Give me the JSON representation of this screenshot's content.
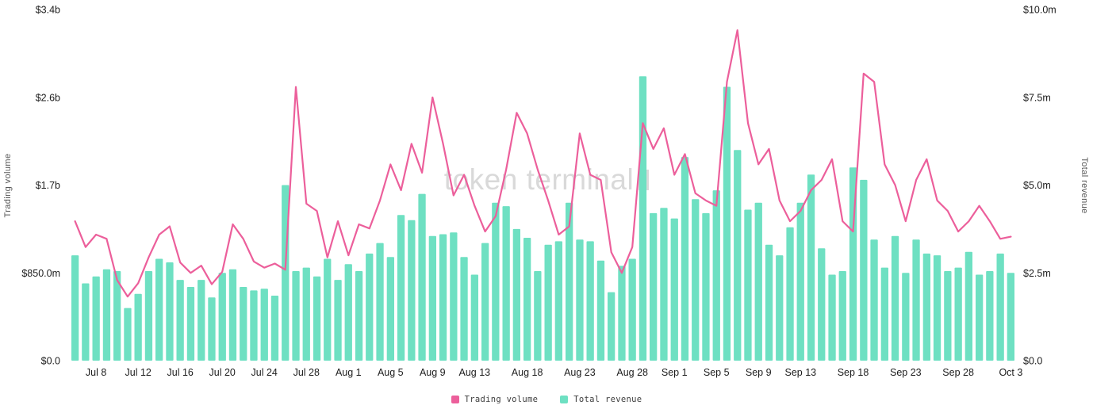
{
  "watermark": "token terminal",
  "left_axis_title": "Trading volume",
  "right_axis_title": "Total revenue",
  "legend": {
    "items": [
      {
        "label": "Trading volume",
        "color": "#ec5f9b"
      },
      {
        "label": "Total revenue",
        "color": "#6ee0c2"
      }
    ]
  },
  "chart_data": {
    "type": "mixed",
    "title": "",
    "grid": false,
    "legend_position": "bottom-center",
    "x": [
      "Jul 6",
      "Jul 7",
      "Jul 8",
      "Jul 9",
      "Jul 10",
      "Jul 11",
      "Jul 12",
      "Jul 13",
      "Jul 14",
      "Jul 15",
      "Jul 16",
      "Jul 17",
      "Jul 18",
      "Jul 19",
      "Jul 20",
      "Jul 21",
      "Jul 22",
      "Jul 23",
      "Jul 24",
      "Jul 25",
      "Jul 26",
      "Jul 27",
      "Jul 28",
      "Jul 29",
      "Jul 30",
      "Jul 31",
      "Aug 1",
      "Aug 2",
      "Aug 3",
      "Aug 4",
      "Aug 5",
      "Aug 6",
      "Aug 7",
      "Aug 8",
      "Aug 9",
      "Aug 10",
      "Aug 11",
      "Aug 12",
      "Aug 13",
      "Aug 14",
      "Aug 15",
      "Aug 16",
      "Aug 17",
      "Aug 18",
      "Aug 19",
      "Aug 20",
      "Aug 21",
      "Aug 22",
      "Aug 23",
      "Aug 24",
      "Aug 25",
      "Aug 26",
      "Aug 27",
      "Aug 28",
      "Aug 29",
      "Aug 30",
      "Aug 31",
      "Sep 1",
      "Sep 2",
      "Sep 3",
      "Sep 4",
      "Sep 5",
      "Sep 6",
      "Sep 7",
      "Sep 8",
      "Sep 9",
      "Sep 10",
      "Sep 11",
      "Sep 12",
      "Sep 13",
      "Sep 14",
      "Sep 15",
      "Sep 16",
      "Sep 17",
      "Sep 18",
      "Sep 19",
      "Sep 20",
      "Sep 21",
      "Sep 22",
      "Sep 23",
      "Sep 24",
      "Sep 25",
      "Sep 26",
      "Sep 27",
      "Sep 28",
      "Sep 29",
      "Sep 30",
      "Oct 1",
      "Oct 2",
      "Oct 3"
    ],
    "x_tick_labels": [
      "Jul 8",
      "Jul 12",
      "Jul 16",
      "Jul 20",
      "Jul 24",
      "Jul 28",
      "Aug 1",
      "Aug 5",
      "Aug 9",
      "Aug 13",
      "Aug 18",
      "Aug 23",
      "Aug 28",
      "Sep 1",
      "Sep 5",
      "Sep 9",
      "Sep 13",
      "Sep 18",
      "Sep 23",
      "Sep 28",
      "Oct 3"
    ],
    "series": [
      {
        "name": "Trading volume",
        "type": "line",
        "axis": "left",
        "color": "#ec5f9b",
        "unit": "USD billions",
        "values": [
          1.35,
          1.1,
          1.22,
          1.18,
          0.78,
          0.62,
          0.75,
          1.0,
          1.22,
          1.3,
          0.95,
          0.85,
          0.92,
          0.74,
          0.86,
          1.32,
          1.18,
          0.96,
          0.9,
          0.94,
          0.88,
          2.65,
          1.52,
          1.45,
          1.0,
          1.35,
          1.02,
          1.32,
          1.28,
          1.55,
          1.9,
          1.65,
          2.1,
          1.82,
          2.55,
          2.1,
          1.6,
          1.8,
          1.5,
          1.25,
          1.4,
          1.85,
          2.4,
          2.2,
          1.85,
          1.55,
          1.22,
          1.3,
          2.2,
          1.8,
          1.75,
          1.05,
          0.85,
          1.1,
          2.3,
          2.05,
          2.25,
          1.8,
          2.0,
          1.62,
          1.55,
          1.5,
          2.7,
          3.2,
          2.3,
          1.9,
          2.05,
          1.55,
          1.35,
          1.45,
          1.65,
          1.75,
          1.95,
          1.35,
          1.25,
          2.78,
          2.7,
          1.9,
          1.7,
          1.35,
          1.75,
          1.95,
          1.55,
          1.45,
          1.25,
          1.35,
          1.5,
          1.35,
          1.18,
          1.2
        ]
      },
      {
        "name": "Total revenue",
        "type": "bar",
        "axis": "right",
        "color": "#6ee0c2",
        "unit": "USD millions",
        "values": [
          3.0,
          2.2,
          2.4,
          2.6,
          2.55,
          1.5,
          1.9,
          2.55,
          2.9,
          2.8,
          2.3,
          2.1,
          2.3,
          1.8,
          2.5,
          2.6,
          2.1,
          2.0,
          2.05,
          1.85,
          5.0,
          2.55,
          2.65,
          2.4,
          2.9,
          2.3,
          2.75,
          2.55,
          3.05,
          3.35,
          2.95,
          4.15,
          4.0,
          4.75,
          3.55,
          3.6,
          3.65,
          2.95,
          2.45,
          3.35,
          4.5,
          4.4,
          3.75,
          3.5,
          2.55,
          3.3,
          3.4,
          4.5,
          3.45,
          3.4,
          2.85,
          1.95,
          2.7,
          2.9,
          8.1,
          4.2,
          4.35,
          4.05,
          5.8,
          4.6,
          4.2,
          4.85,
          7.8,
          6.0,
          4.3,
          4.5,
          3.3,
          3.0,
          3.8,
          4.5,
          5.3,
          3.2,
          2.45,
          2.55,
          5.5,
          5.15,
          3.45,
          2.65,
          3.55,
          2.5,
          3.45,
          3.05,
          3.0,
          2.55,
          2.65,
          3.1,
          2.45,
          2.55,
          3.05,
          2.5
        ]
      }
    ],
    "left_axis": {
      "title": "Trading volume",
      "ticks": [
        "$0.0",
        "$850.0m",
        "$1.7b",
        "$2.6b",
        "$3.4b"
      ],
      "max": 3.4,
      "min": 0
    },
    "right_axis": {
      "title": "Total revenue",
      "ticks": [
        "$0.0",
        "$2.5m",
        "$5.0m",
        "$7.5m",
        "$10.0m"
      ],
      "max": 10,
      "min": 0
    }
  }
}
